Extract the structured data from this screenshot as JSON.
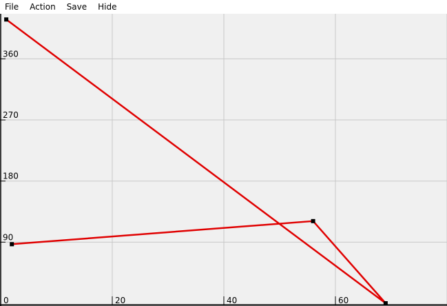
{
  "menu": {
    "items": [
      {
        "id": "file",
        "label": "File"
      },
      {
        "id": "action",
        "label": "Action"
      },
      {
        "id": "save",
        "label": "Save"
      },
      {
        "id": "hide",
        "label": "Hide"
      }
    ]
  },
  "chart_data": {
    "type": "line",
    "title": "",
    "xlabel": "",
    "ylabel": "",
    "xlim": [
      0,
      80
    ],
    "ylim": [
      0,
      420
    ],
    "x_ticks": [
      0,
      20,
      40,
      60
    ],
    "y_ticks": [
      90,
      180,
      270,
      360
    ],
    "grid": true,
    "line_color": "#e00000",
    "marker_color": "#000000",
    "background": "#f0f0f0",
    "grid_color": "#c8c8c8",
    "points": [
      {
        "x": 1,
        "y": 418
      },
      {
        "x": 69,
        "y": 0
      },
      {
        "x": 56,
        "y": 121
      },
      {
        "x": 2,
        "y": 87
      }
    ]
  }
}
